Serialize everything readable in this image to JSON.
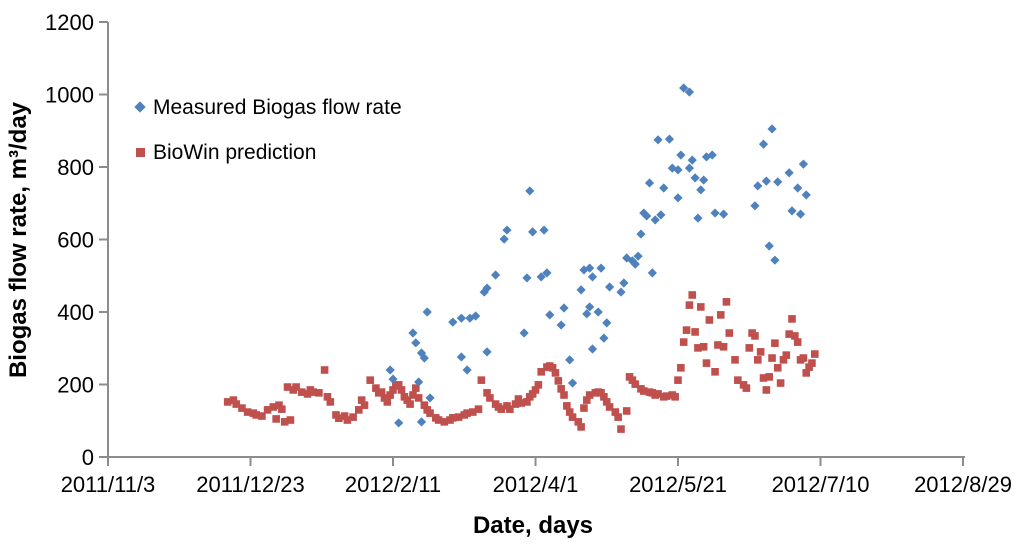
{
  "chart_data": {
    "type": "scatter",
    "title": "",
    "xlabel": "Date, days",
    "ylabel": "Biogas flow rate, m³/day",
    "x_range_days": [
      0,
      300
    ],
    "y_range": [
      0,
      1200
    ],
    "y_ticks": [
      0,
      200,
      400,
      600,
      800,
      1000,
      1200
    ],
    "x_ticks": [
      {
        "days": 0,
        "label": "2011/11/3"
      },
      {
        "days": 50,
        "label": "2011/12/23"
      },
      {
        "days": 100,
        "label": "2012/2/11"
      },
      {
        "days": 150,
        "label": "2012/4/1"
      },
      {
        "days": 200,
        "label": "2012/5/21"
      },
      {
        "days": 250,
        "label": "2012/7/10"
      },
      {
        "days": 300,
        "label": "2012/8/29"
      }
    ],
    "grid": false,
    "legend_position": "inside-top-left",
    "axis_color": "#8C8C8C",
    "text_color": "#000000",
    "background_color": "#FFFFFF",
    "series": [
      {
        "name": "Measured Biogas flow rate",
        "marker": "diamond",
        "color": "#4F81BD",
        "points": [
          [
            99,
            240
          ],
          [
            100,
            215
          ],
          [
            102,
            94
          ],
          [
            107,
            342
          ],
          [
            108,
            315
          ],
          [
            109,
            207
          ],
          [
            110,
            97
          ],
          [
            110,
            287
          ],
          [
            111,
            273
          ],
          [
            112,
            400
          ],
          [
            113,
            163
          ],
          [
            121,
            372
          ],
          [
            124,
            383
          ],
          [
            124,
            276
          ],
          [
            126,
            240
          ],
          [
            127,
            383
          ],
          [
            129,
            389
          ],
          [
            132,
            455
          ],
          [
            133,
            466
          ],
          [
            133,
            290
          ],
          [
            136,
            502
          ],
          [
            139,
            601
          ],
          [
            140,
            626
          ],
          [
            146,
            342
          ],
          [
            147,
            494
          ],
          [
            148,
            734
          ],
          [
            149,
            621
          ],
          [
            152,
            497
          ],
          [
            153,
            626
          ],
          [
            154,
            508
          ],
          [
            155,
            392
          ],
          [
            159,
            364
          ],
          [
            160,
            411
          ],
          [
            162,
            268
          ],
          [
            163,
            204
          ],
          [
            166,
            461
          ],
          [
            167,
            516
          ],
          [
            168,
            395
          ],
          [
            169,
            414
          ],
          [
            169,
            521
          ],
          [
            170,
            298
          ],
          [
            170,
            497
          ],
          [
            172,
            400
          ],
          [
            173,
            521
          ],
          [
            174,
            328
          ],
          [
            175,
            370
          ],
          [
            176,
            469
          ],
          [
            180,
            455
          ],
          [
            181,
            480
          ],
          [
            182,
            549
          ],
          [
            184,
            541
          ],
          [
            185,
            532
          ],
          [
            186,
            554
          ],
          [
            187,
            615
          ],
          [
            188,
            673
          ],
          [
            189,
            665
          ],
          [
            190,
            756
          ],
          [
            191,
            508
          ],
          [
            192,
            654
          ],
          [
            193,
            875
          ],
          [
            194,
            668
          ],
          [
            195,
            742
          ],
          [
            197,
            877
          ],
          [
            198,
            797
          ],
          [
            200,
            792
          ],
          [
            200,
            715
          ],
          [
            201,
            833
          ],
          [
            202,
            1018
          ],
          [
            204,
            1007
          ],
          [
            204,
            797
          ],
          [
            205,
            819
          ],
          [
            206,
            770
          ],
          [
            207,
            659
          ],
          [
            208,
            737
          ],
          [
            209,
            764
          ],
          [
            210,
            828
          ],
          [
            212,
            833
          ],
          [
            213,
            673
          ],
          [
            216,
            670
          ],
          [
            227,
            693
          ],
          [
            228,
            748
          ],
          [
            230,
            863
          ],
          [
            231,
            761
          ],
          [
            232,
            582
          ],
          [
            233,
            905
          ],
          [
            234,
            543
          ],
          [
            235,
            759
          ],
          [
            239,
            784
          ],
          [
            240,
            679
          ],
          [
            242,
            742
          ],
          [
            243,
            670
          ],
          [
            244,
            808
          ],
          [
            245,
            723
          ]
        ]
      },
      {
        "name": "BioWin prediction",
        "marker": "square",
        "color": "#C0504D",
        "points": [
          [
            42,
            152
          ],
          [
            44,
            157
          ],
          [
            45,
            146
          ],
          [
            47,
            135
          ],
          [
            49,
            124
          ],
          [
            51,
            121
          ],
          [
            52,
            116
          ],
          [
            54,
            113
          ],
          [
            56,
            130
          ],
          [
            58,
            138
          ],
          [
            59,
            105
          ],
          [
            60,
            143
          ],
          [
            61,
            132
          ],
          [
            62,
            97
          ],
          [
            64,
            102
          ],
          [
            63,
            193
          ],
          [
            65,
            185
          ],
          [
            66,
            193
          ],
          [
            68,
            179
          ],
          [
            70,
            174
          ],
          [
            71,
            185
          ],
          [
            72,
            179
          ],
          [
            74,
            177
          ],
          [
            76,
            240
          ],
          [
            77,
            166
          ],
          [
            78,
            152
          ],
          [
            80,
            116
          ],
          [
            81,
            107
          ],
          [
            83,
            113
          ],
          [
            84,
            102
          ],
          [
            86,
            110
          ],
          [
            88,
            130
          ],
          [
            89,
            157
          ],
          [
            90,
            143
          ],
          [
            92,
            212
          ],
          [
            94,
            190
          ],
          [
            95,
            177
          ],
          [
            96,
            179
          ],
          [
            97,
            163
          ],
          [
            98,
            152
          ],
          [
            99,
            171
          ],
          [
            100,
            185
          ],
          [
            101,
            196
          ],
          [
            102,
            199
          ],
          [
            103,
            185
          ],
          [
            104,
            166
          ],
          [
            105,
            157
          ],
          [
            106,
            146
          ],
          [
            107,
            171
          ],
          [
            108,
            190
          ],
          [
            109,
            163
          ],
          [
            111,
            143
          ],
          [
            112,
            130
          ],
          [
            113,
            121
          ],
          [
            115,
            108
          ],
          [
            116,
            102
          ],
          [
            118,
            97
          ],
          [
            120,
            102
          ],
          [
            121,
            108
          ],
          [
            123,
            110
          ],
          [
            125,
            116
          ],
          [
            126,
            121
          ],
          [
            128,
            124
          ],
          [
            130,
            132
          ],
          [
            131,
            212
          ],
          [
            133,
            177
          ],
          [
            134,
            163
          ],
          [
            136,
            146
          ],
          [
            137,
            138
          ],
          [
            138,
            132
          ],
          [
            140,
            141
          ],
          [
            141,
            132
          ],
          [
            143,
            146
          ],
          [
            144,
            160
          ],
          [
            145,
            149
          ],
          [
            147,
            152
          ],
          [
            148,
            166
          ],
          [
            149,
            174
          ],
          [
            150,
            185
          ],
          [
            151,
            199
          ],
          [
            152,
            235
          ],
          [
            154,
            248
          ],
          [
            155,
            251
          ],
          [
            156,
            246
          ],
          [
            157,
            232
          ],
          [
            158,
            210
          ],
          [
            159,
            188
          ],
          [
            160,
            171
          ],
          [
            161,
            141
          ],
          [
            162,
            124
          ],
          [
            163,
            110
          ],
          [
            165,
            97
          ],
          [
            166,
            83
          ],
          [
            167,
            135
          ],
          [
            168,
            157
          ],
          [
            169,
            171
          ],
          [
            171,
            177
          ],
          [
            172,
            179
          ],
          [
            173,
            177
          ],
          [
            174,
            166
          ],
          [
            175,
            152
          ],
          [
            176,
            138
          ],
          [
            178,
            124
          ],
          [
            179,
            110
          ],
          [
            180,
            77
          ],
          [
            182,
            127
          ],
          [
            183,
            221
          ],
          [
            184,
            212
          ],
          [
            185,
            201
          ],
          [
            187,
            188
          ],
          [
            188,
            182
          ],
          [
            190,
            179
          ],
          [
            191,
            177
          ],
          [
            192,
            171
          ],
          [
            193,
            174
          ],
          [
            195,
            166
          ],
          [
            196,
            168
          ],
          [
            198,
            171
          ],
          [
            199,
            166
          ],
          [
            200,
            212
          ],
          [
            201,
            246
          ],
          [
            202,
            317
          ],
          [
            203,
            350
          ],
          [
            204,
            419
          ],
          [
            205,
            447
          ],
          [
            206,
            345
          ],
          [
            207,
            301
          ],
          [
            208,
            414
          ],
          [
            209,
            304
          ],
          [
            210,
            259
          ],
          [
            211,
            378
          ],
          [
            213,
            235
          ],
          [
            214,
            309
          ],
          [
            215,
            392
          ],
          [
            216,
            304
          ],
          [
            217,
            428
          ],
          [
            218,
            342
          ],
          [
            220,
            268
          ],
          [
            221,
            212
          ],
          [
            223,
            199
          ],
          [
            224,
            190
          ],
          [
            225,
            301
          ],
          [
            226,
            342
          ],
          [
            227,
            334
          ],
          [
            228,
            268
          ],
          [
            229,
            290
          ],
          [
            230,
            218
          ],
          [
            231,
            185
          ],
          [
            232,
            221
          ],
          [
            233,
            273
          ],
          [
            234,
            314
          ],
          [
            235,
            246
          ],
          [
            236,
            204
          ],
          [
            237,
            268
          ],
          [
            238,
            281
          ],
          [
            239,
            339
          ],
          [
            240,
            381
          ],
          [
            241,
            334
          ],
          [
            242,
            317
          ],
          [
            243,
            268
          ],
          [
            244,
            273
          ],
          [
            245,
            232
          ],
          [
            246,
            248
          ],
          [
            247,
            259
          ],
          [
            248,
            284
          ]
        ]
      }
    ]
  }
}
